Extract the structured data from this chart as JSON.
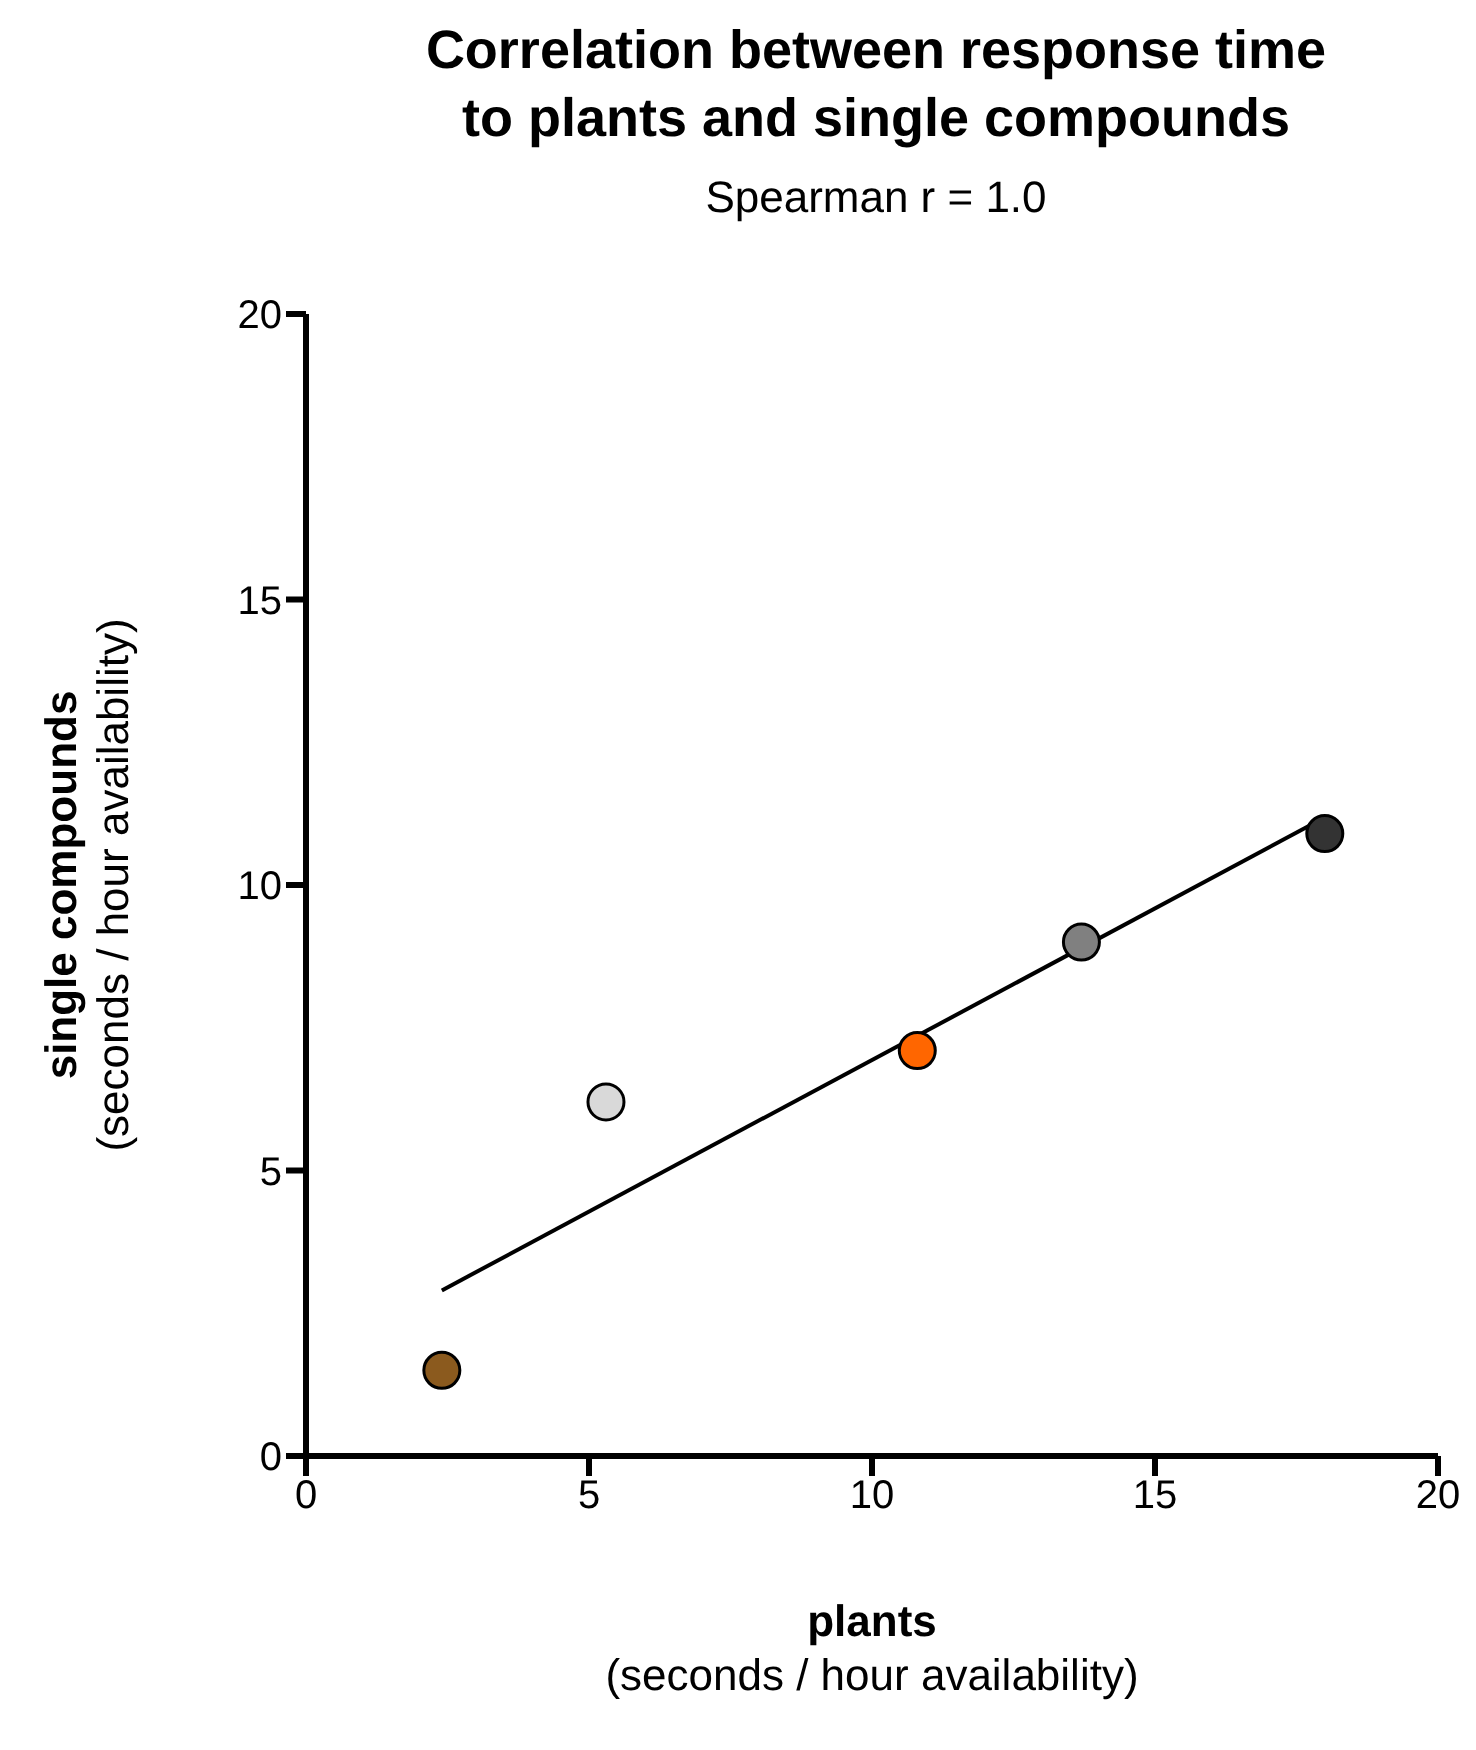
{
  "chart_data": {
    "type": "scatter",
    "title": "Correlation between response time\nto plants and single compounds",
    "subtitle": "Spearman r = 1.0",
    "xlabel": "plants\n(seconds / hour availability)",
    "ylabel": "single compounds\n(seconds / hour availability)",
    "xlim": [
      0,
      20
    ],
    "xticks": [
      0,
      5,
      10,
      15,
      20
    ],
    "ylim": [
      0,
      20
    ],
    "yticks": [
      0,
      5,
      10,
      15,
      20
    ],
    "series": [
      {
        "marker": "circle",
        "x": [
          2.4,
          5.3,
          10.8,
          13.7,
          18
        ],
        "values": [
          1.5,
          6.2,
          7.1,
          9,
          10.9
        ],
        "colors": [
          "#8b5a1e",
          "#d9d9d9",
          "#ff6600",
          "#808080",
          "#333333"
        ]
      },
      {
        "type": "line",
        "x": [
          2.4,
          17.75
        ],
        "values": [
          2.9,
          11.05
        ],
        "color": "#000000",
        "line_style": "solid"
      }
    ]
  }
}
